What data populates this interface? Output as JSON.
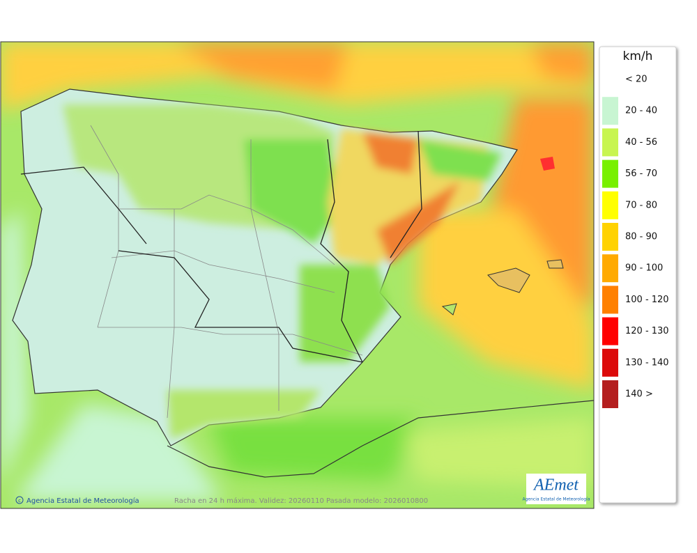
{
  "legend": {
    "title": "km/h",
    "items": [
      {
        "label": "< 20"
      },
      {
        "label": "20 - 40",
        "color": "#c8f5d2"
      },
      {
        "label": "40 - 56",
        "color": "#c8f550"
      },
      {
        "label": "56 - 70",
        "color": "#78f000"
      },
      {
        "label": "70 - 80",
        "color": "#ffff00"
      },
      {
        "label": "80 - 90",
        "color": "#ffd200"
      },
      {
        "label": "90 - 100",
        "color": "#ffaa00"
      },
      {
        "label": "100 - 120",
        "color": "#ff8000"
      },
      {
        "label": "120 - 130",
        "color": "#ff0000"
      },
      {
        "label": "130 - 140",
        "color": "#dc0a0a"
      },
      {
        "label": "140 >",
        "color": "#b41e1e"
      }
    ]
  },
  "footer": {
    "credit": "Agencia Estatal de Meteorología",
    "caption": "Racha en 24 h máxima. Validez: 20260110 Pasada modelo: 2026010800"
  },
  "logo": {
    "name": "AEmet",
    "subtitle": "Agencia Estatal de Meteorología"
  }
}
